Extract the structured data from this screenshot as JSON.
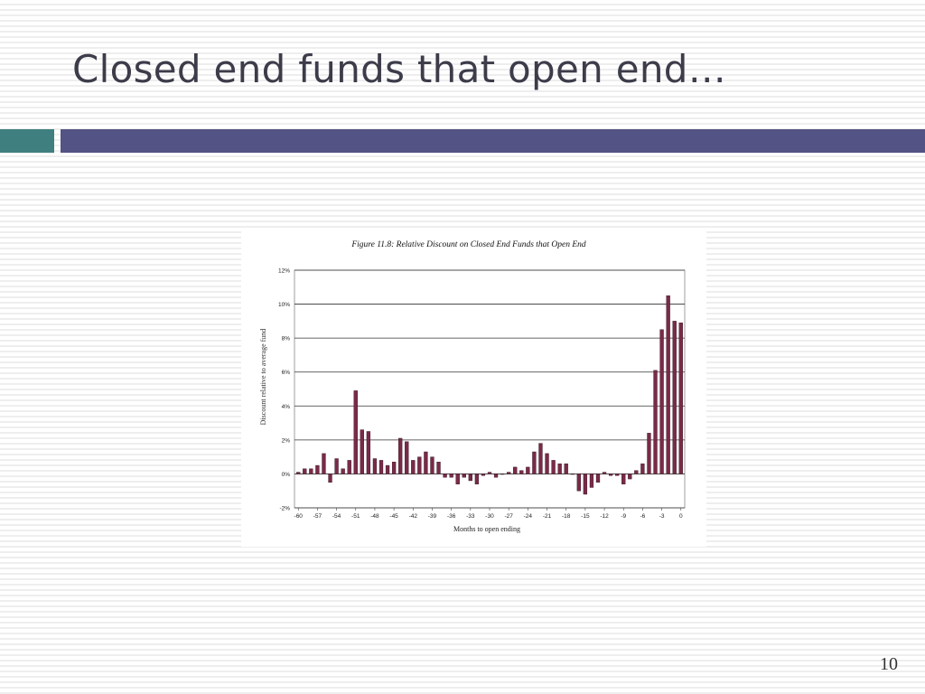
{
  "slide": {
    "title": "Closed end funds that open end…",
    "page_number": "10"
  },
  "colors": {
    "teal_bar": "#3f7f7f",
    "purple_bar": "#535385",
    "chart_bar_fill": "#7a2a48"
  },
  "chart_data": {
    "type": "bar",
    "title": "Figure 11.8: Relative Discount on Closed End Funds that Open End",
    "xlabel": "Months to open ending",
    "ylabel": "Discount relative to average fund",
    "ylim": [
      -2,
      12
    ],
    "y_ticks": [
      -2,
      0,
      2,
      4,
      6,
      8,
      10,
      12
    ],
    "y_tick_labels": [
      "-2%",
      "0%",
      "2%",
      "4%",
      "6%",
      "8%",
      "10%",
      "12%"
    ],
    "x_ticks": [
      -60,
      -57,
      -54,
      -51,
      -48,
      -45,
      -42,
      -39,
      -36,
      -33,
      -30,
      -27,
      -24,
      -21,
      -18,
      -15,
      -12,
      -9,
      -6,
      -3,
      0
    ],
    "x_tick_labels": [
      "-60",
      "-57",
      "-54",
      "-51",
      "-48",
      "-45",
      "-42",
      "-39",
      "-36",
      "-33",
      "-30",
      "-27",
      "-24",
      "-21",
      "-18",
      "-15",
      "-12",
      "-9",
      "-6",
      "-3",
      "0"
    ],
    "grid": "horizontal",
    "categories": [
      -60,
      -59,
      -58,
      -57,
      -56,
      -55,
      -54,
      -53,
      -52,
      -51,
      -50,
      -49,
      -48,
      -47,
      -46,
      -45,
      -44,
      -43,
      -42,
      -41,
      -40,
      -39,
      -38,
      -37,
      -36,
      -35,
      -34,
      -33,
      -32,
      -31,
      -30,
      -29,
      -28,
      -27,
      -26,
      -25,
      -24,
      -23,
      -22,
      -21,
      -20,
      -19,
      -18,
      -17,
      -16,
      -15,
      -14,
      -13,
      -12,
      -11,
      -10,
      -9,
      -8,
      -7,
      -6,
      -5,
      -4,
      -3,
      -2,
      -1,
      0
    ],
    "values": [
      0.1,
      0.3,
      0.3,
      0.5,
      1.2,
      -0.5,
      0.9,
      0.3,
      0.8,
      4.9,
      2.6,
      2.5,
      0.9,
      0.8,
      0.5,
      0.7,
      2.1,
      1.9,
      0.8,
      1.0,
      1.3,
      1.0,
      0.7,
      -0.2,
      -0.2,
      -0.6,
      -0.2,
      -0.4,
      -0.6,
      -0.1,
      0.1,
      -0.2,
      0.0,
      0.1,
      0.4,
      0.2,
      0.4,
      1.3,
      1.8,
      1.2,
      0.8,
      0.6,
      0.6,
      0.0,
      -1.0,
      -1.2,
      -0.8,
      -0.5,
      0.1,
      -0.1,
      -0.1,
      -0.6,
      -0.3,
      0.2,
      0.6,
      2.4,
      6.1,
      8.5,
      10.5,
      9.0,
      8.9
    ]
  }
}
